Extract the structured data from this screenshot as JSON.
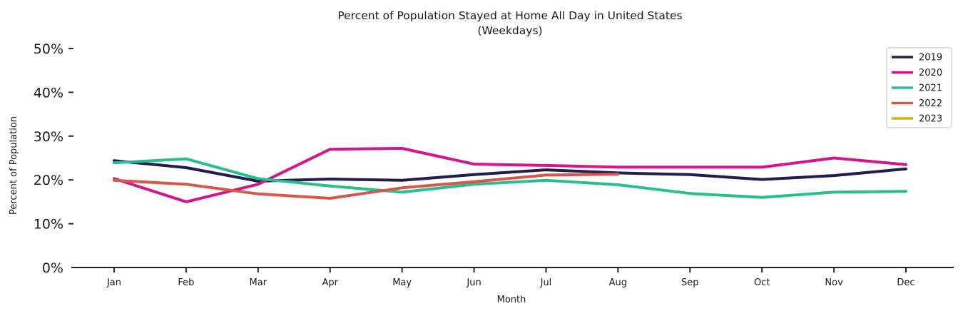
{
  "chart_data": {
    "type": "line",
    "title": "Percent of Population Stayed at Home All Day in United States",
    "subtitle": "(Weekdays)",
    "xlabel": "Month",
    "ylabel": "Percent of Population",
    "categories": [
      "Jan",
      "Feb",
      "Mar",
      "Apr",
      "May",
      "Jun",
      "Jul",
      "Aug",
      "Sep",
      "Oct",
      "Nov",
      "Dec"
    ],
    "yticks": [
      "0%",
      "10%",
      "20%",
      "30%",
      "40%",
      "50%"
    ],
    "ylim": [
      0,
      50
    ],
    "grid": false,
    "legend_position": "upper right",
    "axis_color": "#262626",
    "legend_border_color": "#cccccc",
    "series": [
      {
        "name": "2019",
        "color": "#1f1e4e",
        "values": [
          24.4,
          22.8,
          19.7,
          20.2,
          19.9,
          21.2,
          22.3,
          21.6,
          21.2,
          20.1,
          21.0,
          22.5
        ]
      },
      {
        "name": "2020",
        "color": "#d3168c",
        "values": [
          20.3,
          15.0,
          19.0,
          27.0,
          27.2,
          23.6,
          23.3,
          22.9,
          22.9,
          22.9,
          25.0,
          23.5
        ]
      },
      {
        "name": "2021",
        "color": "#2abd8e",
        "values": [
          23.9,
          24.8,
          20.3,
          18.6,
          17.2,
          19.0,
          19.9,
          18.9,
          16.9,
          16.0,
          17.2,
          17.4
        ]
      },
      {
        "name": "2022",
        "color": "#d6584b",
        "values": [
          19.9,
          19.0,
          16.8,
          15.8,
          18.2,
          19.6,
          21.1,
          21.3,
          null,
          null,
          null,
          null
        ]
      },
      {
        "name": "2023",
        "color": "#dfaf14",
        "values": [
          null,
          null,
          null,
          null,
          null,
          null,
          null,
          null,
          null,
          null,
          null,
          null
        ]
      }
    ]
  }
}
